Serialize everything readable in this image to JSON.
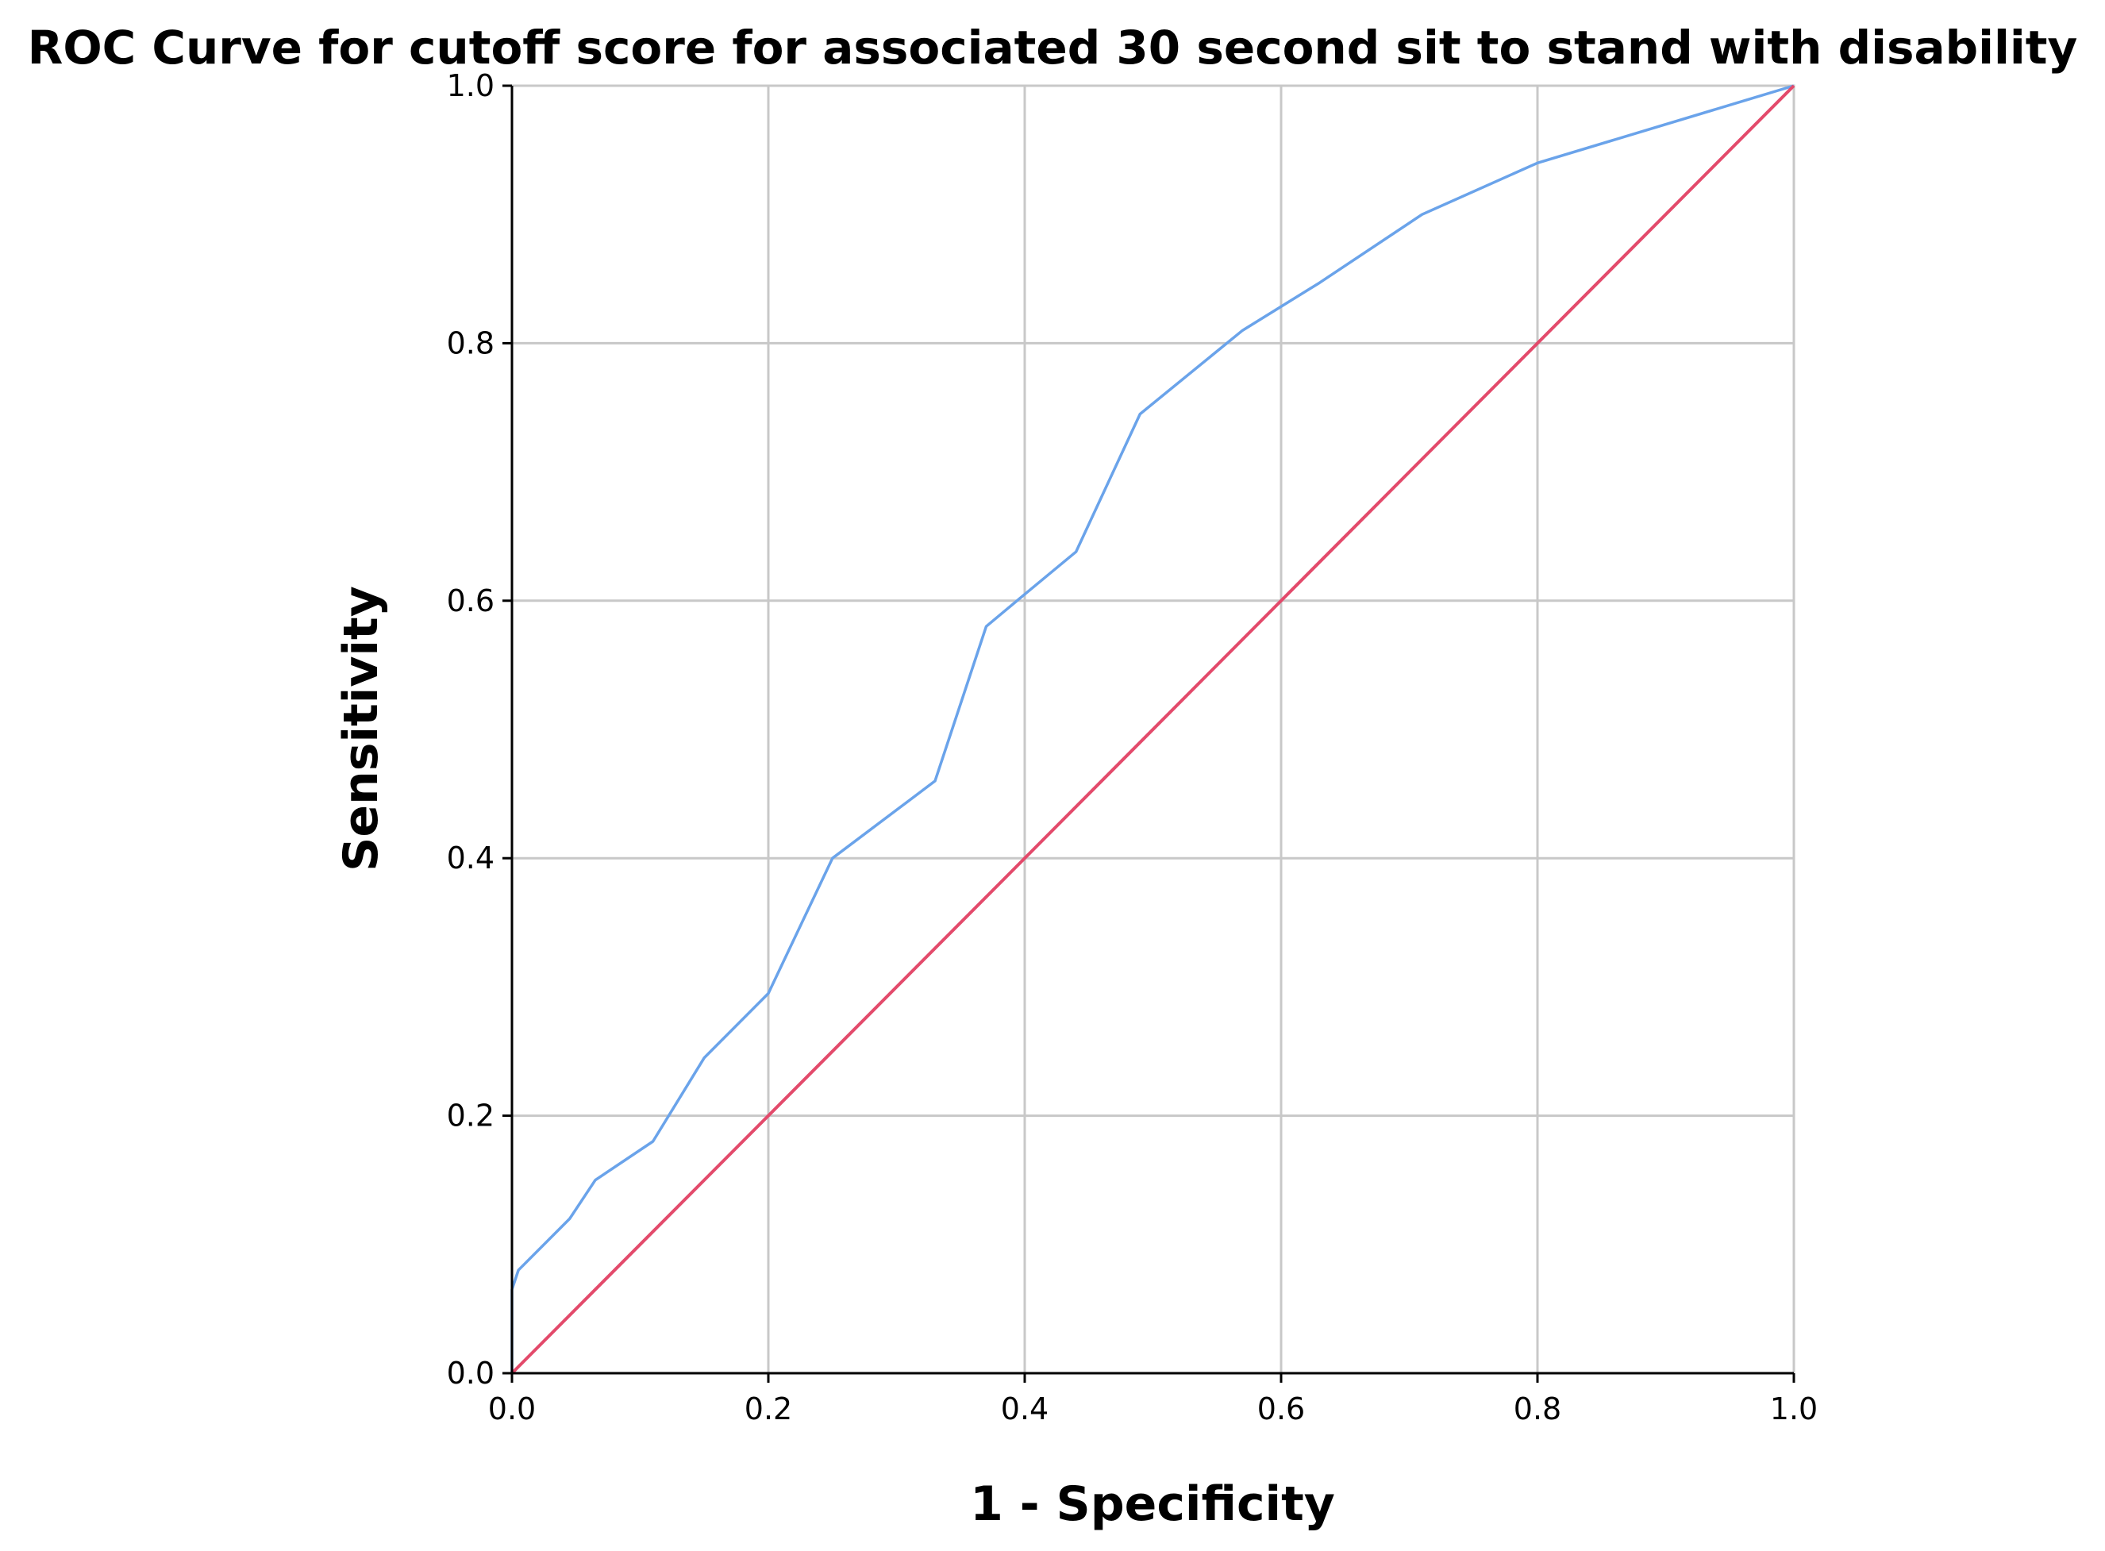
{
  "chart_data": {
    "type": "line",
    "title": "ROC Curve for cutoff score for associated 30 second sit to stand with disability",
    "xlabel": "1 - Specificity",
    "ylabel": "Sensitivity",
    "xlim": [
      0,
      1
    ],
    "ylim": [
      0,
      1
    ],
    "x_ticks": [
      "0.0",
      "0.2",
      "0.4",
      "0.6",
      "0.8",
      "1.0"
    ],
    "y_ticks": [
      "0.0",
      "0.2",
      "0.4",
      "0.6",
      "0.8",
      "1.0"
    ],
    "grid": true,
    "series": [
      {
        "color": "#6aa3ea",
        "x": [
          0.0,
          0.0,
          0.005,
          0.045,
          0.065,
          0.11,
          0.15,
          0.2,
          0.25,
          0.33,
          0.37,
          0.4,
          0.44,
          0.49,
          0.57,
          0.63,
          0.71,
          0.8,
          1.0
        ],
        "y": [
          0.0,
          0.065,
          0.08,
          0.12,
          0.15,
          0.18,
          0.245,
          0.295,
          0.4,
          0.46,
          0.58,
          0.605,
          0.638,
          0.745,
          0.81,
          0.847,
          0.9,
          0.94,
          1.0
        ]
      },
      {
        "color": "#e34a6b",
        "x": [
          0.0,
          1.0
        ],
        "y": [
          0.0,
          1.0
        ]
      }
    ]
  }
}
